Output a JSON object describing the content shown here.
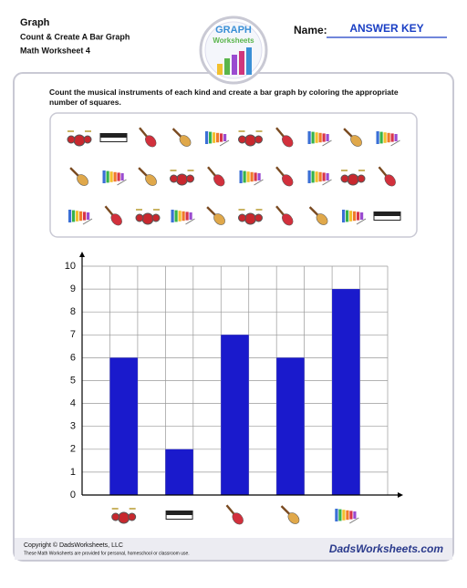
{
  "header": {
    "title": "Graph",
    "subtitle": "Count & Create A Bar Graph",
    "worksheet": "Math Worksheet 4",
    "logo_top": "GRAPH",
    "logo_bottom": "Worksheets",
    "name_label": "Name:",
    "name_value": "ANSWER KEY"
  },
  "instructions": "Count the musical instruments of each kind and create a bar graph by coloring the appropriate number of squares.",
  "chart_data": {
    "type": "bar",
    "categories": [
      null,
      null,
      null,
      null,
      null
    ],
    "values": [
      6,
      2,
      7,
      6,
      9
    ],
    "color": "#1a1acc",
    "ylim": [
      0,
      10
    ],
    "yticks": [
      0,
      1,
      2,
      3,
      4,
      5,
      6,
      7,
      8,
      9,
      10
    ],
    "grid": true
  },
  "footer": {
    "copyright": "Copyright © DadsWorksheets, LLC",
    "note": "These Math Worksheets are provided for personal, homeschool or classroom use.",
    "logo": "DadsWorksheets.com"
  }
}
